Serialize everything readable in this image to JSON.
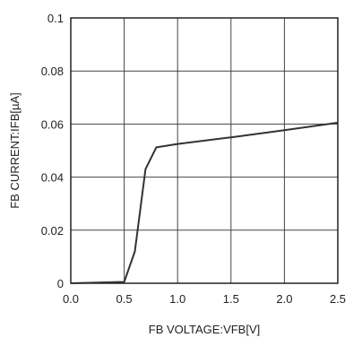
{
  "chart_data": {
    "type": "line",
    "title": "",
    "xlabel": "FB VOLTAGE:VFB[V]",
    "ylabel": "FB CURRENT:IFB[µA]",
    "xlim": [
      0,
      2.5
    ],
    "ylim": [
      0,
      0.1
    ],
    "x_ticks": [
      0,
      0.5,
      1,
      1.5,
      2,
      2.5
    ],
    "y_ticks": [
      0,
      0.02,
      0.04,
      0.06,
      0.08,
      0.1
    ],
    "x_tick_labels": [
      "0.0",
      "0.5",
      "1.0",
      "1.5",
      "2.0",
      "2.5"
    ],
    "y_tick_labels": [
      "0",
      "0.02",
      "0.04",
      "0.06",
      "0.08",
      "0.1"
    ],
    "grid": true,
    "series": [
      {
        "color": "#333333",
        "points": [
          [
            0.0,
            0.0
          ],
          [
            0.5,
            0.0005
          ],
          [
            0.6,
            0.012
          ],
          [
            0.7,
            0.043
          ],
          [
            0.8,
            0.0512
          ],
          [
            1.0,
            0.0525
          ],
          [
            1.5,
            0.055
          ],
          [
            2.0,
            0.0577
          ],
          [
            2.5,
            0.0605
          ]
        ]
      }
    ]
  }
}
